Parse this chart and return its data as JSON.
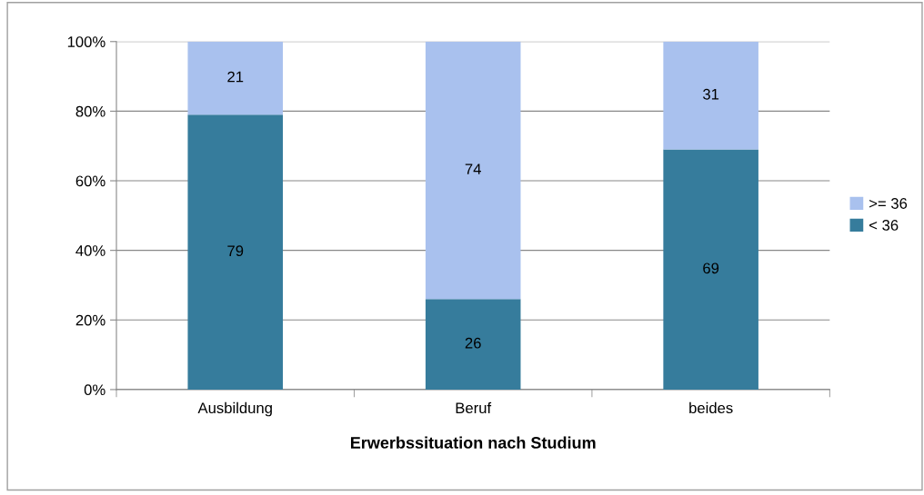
{
  "chart_data": {
    "type": "bar",
    "stacked": true,
    "xlabel": "Erwerbssituation nach Studium",
    "categories": [
      "Ausbildung",
      "Beruf",
      "beides"
    ],
    "series": [
      {
        "name": "< 36",
        "color": "#367c9c",
        "values": [
          79,
          26,
          69
        ]
      },
      {
        "name": ">= 36",
        "color": "#a9c1ee",
        "values": [
          21,
          74,
          31
        ]
      }
    ],
    "ylim": [
      0,
      100
    ],
    "yticks": [
      {
        "value": 0,
        "label": "0%"
      },
      {
        "value": 20,
        "label": "20%"
      },
      {
        "value": 40,
        "label": "40%"
      },
      {
        "value": 60,
        "label": "60%"
      },
      {
        "value": 80,
        "label": "80%"
      },
      {
        "value": 100,
        "label": "100%"
      }
    ],
    "grid": "y",
    "legend": "right",
    "data_labels": true
  }
}
